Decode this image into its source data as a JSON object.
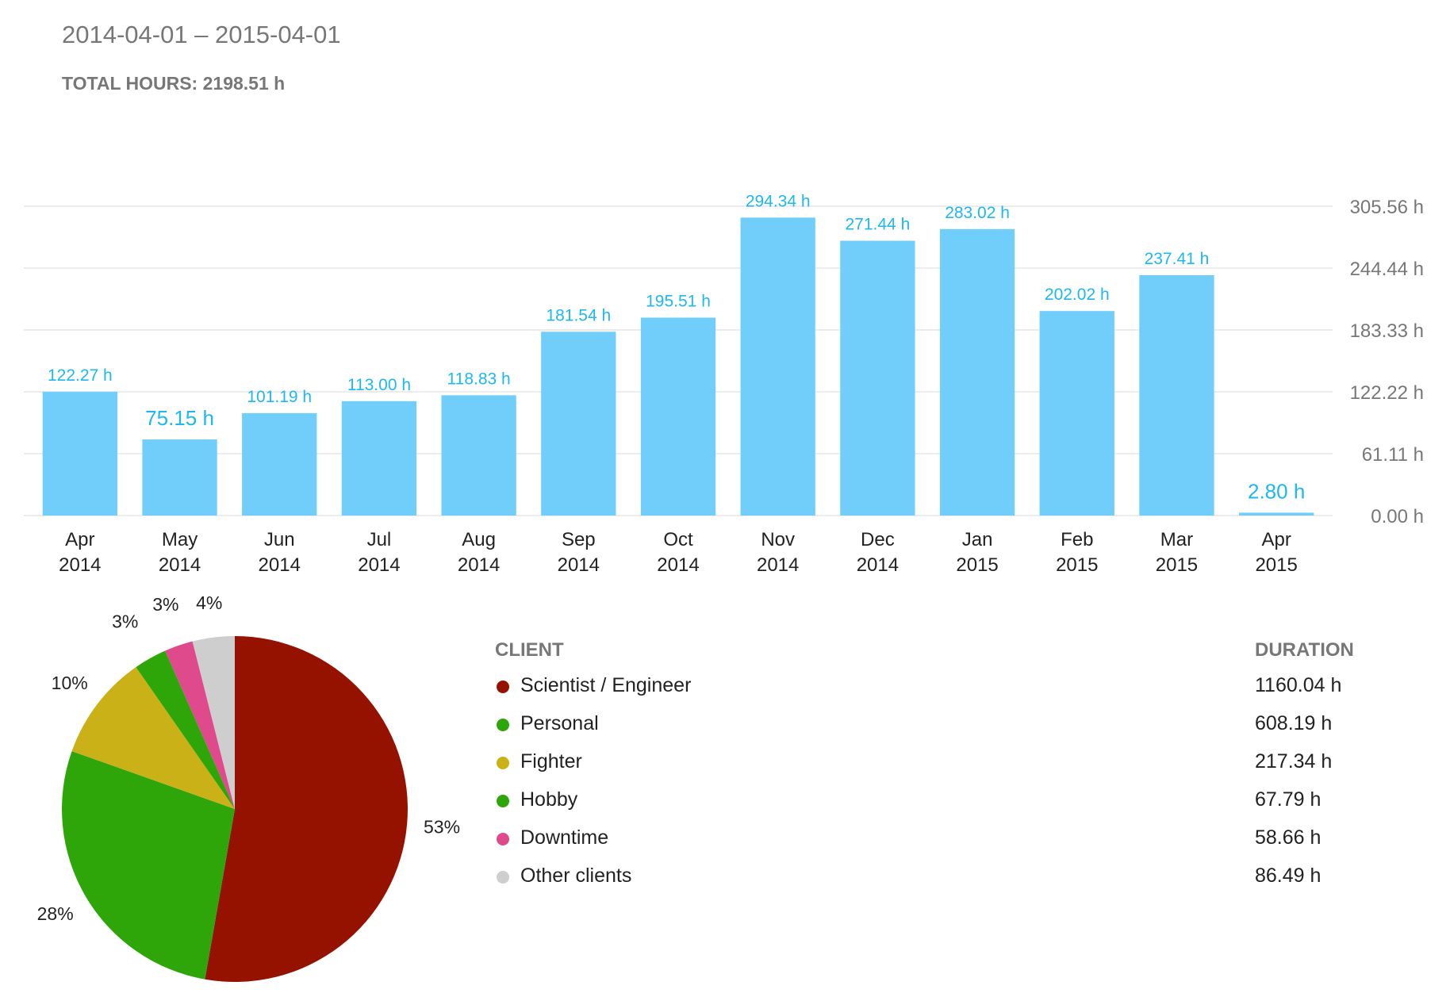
{
  "header": {
    "date_range": "2014-04-01 – 2015-04-01",
    "total_label": "TOTAL HOURS:",
    "total_value": "2198.51 h"
  },
  "chart_data": [
    {
      "type": "bar",
      "categories": [
        [
          "Apr",
          "2014"
        ],
        [
          "May",
          "2014"
        ],
        [
          "Jun",
          "2014"
        ],
        [
          "Jul",
          "2014"
        ],
        [
          "Aug",
          "2014"
        ],
        [
          "Sep",
          "2014"
        ],
        [
          "Oct",
          "2014"
        ],
        [
          "Nov",
          "2014"
        ],
        [
          "Dec",
          "2014"
        ],
        [
          "Jan",
          "2015"
        ],
        [
          "Feb",
          "2015"
        ],
        [
          "Mar",
          "2015"
        ],
        [
          "Apr",
          "2015"
        ]
      ],
      "values": [
        122.27,
        75.15,
        101.19,
        113.0,
        118.83,
        181.54,
        195.51,
        294.34,
        271.44,
        283.02,
        202.02,
        237.41,
        2.8
      ],
      "value_labels": [
        "122.27 h",
        "75.15 h",
        "101.19 h",
        "113.00 h",
        "118.83 h",
        "181.54 h",
        "195.51 h",
        "294.34 h",
        "271.44 h",
        "283.02 h",
        "202.02 h",
        "237.41 h",
        "2.80 h"
      ],
      "y_ticks": [
        0,
        61.11,
        122.22,
        183.33,
        244.44,
        305.56
      ],
      "y_tick_labels": [
        "0.00 h",
        "61.11 h",
        "122.22 h",
        "183.33 h",
        "244.44 h",
        "305.56 h"
      ],
      "ylim": [
        0,
        305.56
      ],
      "y_axis_side": "right",
      "grid": true,
      "colors": {
        "bar": "#71cdf9",
        "label": "#1eb8f0",
        "grid": "#ececec",
        "tick": "#777777",
        "axis_text": "#222222"
      }
    },
    {
      "type": "pie",
      "labels": [
        "Scientist / Engineer",
        "Personal",
        "Fighter",
        "Hobby",
        "Downtime",
        "Other clients"
      ],
      "values": [
        1160.04,
        608.19,
        217.34,
        67.79,
        58.66,
        86.49
      ],
      "percent_labels": [
        "53%",
        "28%",
        "10%",
        "3%",
        "3%",
        "4%"
      ],
      "colors": [
        "#961200",
        "#2ea60a",
        "#c9b117",
        "#2ea60a",
        "#de4a8b",
        "#cecece"
      ],
      "start": "top",
      "direction": "clockwise"
    }
  ],
  "legend": {
    "client_header": "CLIENT",
    "duration_header": "DURATION",
    "rows": [
      {
        "name": "Scientist / Engineer",
        "duration": "1160.04 h",
        "color": "#961200"
      },
      {
        "name": "Personal",
        "duration": "608.19 h",
        "color": "#2ea60a"
      },
      {
        "name": "Fighter",
        "duration": "217.34 h",
        "color": "#c9b117"
      },
      {
        "name": "Hobby",
        "duration": "67.79 h",
        "color": "#2ea60a"
      },
      {
        "name": "Downtime",
        "duration": "58.66 h",
        "color": "#de4a8b"
      },
      {
        "name": "Other clients",
        "duration": "86.49 h",
        "color": "#cecece"
      }
    ]
  }
}
